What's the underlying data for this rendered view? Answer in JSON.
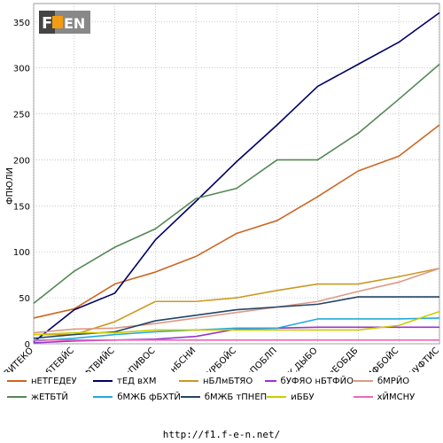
{
  "chart_data": {
    "type": "line",
    "title": "",
    "xlabel": "",
    "ylabel": "ФПЮЛИ",
    "ylim": [
      0,
      370
    ],
    "yticks": [
      0,
      50,
      100,
      150,
      200,
      250,
      300,
      350
    ],
    "grid": true,
    "legend_position": "bottom",
    "categories": [
      "вВИТЕКО",
      "уБ'РИФУЛБ бТЕВЙС",
      "бЧУФТВИЙС",
      "еНЙМИС-тПИВОС",
      "нБСНИ",
      "йУРБОЙС",
      "нПОБЛП",
      "бЪЕТВБК.ДЫБО",
      "лЕОБДБ",
      "лЙЛГОЛПЛВТИФБОЙС",
      "бЧУФТИС"
    ],
    "series": [
      {
        "name": "нЕТГЕДЕУ",
        "color": "#cc6622",
        "values": [
          28,
          38,
          65,
          78,
          95,
          120,
          134,
          160,
          188,
          204,
          238
        ]
      },
      {
        "name": "тЕД вХМ",
        "color": "#000066",
        "values": [
          2,
          37,
          55,
          113,
          155,
          198,
          238,
          280,
          304,
          328,
          360
        ]
      },
      {
        "name": "нБЛмБТЯО",
        "color": "#cc9922",
        "values": [
          10,
          10,
          24,
          46,
          46,
          50,
          58,
          65,
          65,
          73,
          82
        ]
      },
      {
        "name": "бУФЯО нБТФЙО",
        "color": "#9933cc",
        "values": [
          1,
          3,
          4,
          5,
          8,
          16,
          17,
          18,
          18,
          18,
          18
        ]
      },
      {
        "name": "бМРЙО",
        "color": "#dd9988",
        "values": [
          12,
          16,
          17,
          22,
          28,
          34,
          40,
          46,
          57,
          67,
          82
        ]
      },
      {
        "name": "жЕТБТЙ",
        "color": "#558855",
        "values": [
          44,
          79,
          105,
          125,
          158,
          169,
          200,
          200,
          229,
          266,
          304
        ]
      },
      {
        "name": "бМЖБ фБХТЙ",
        "color": "#22aadd",
        "values": [
          3,
          6,
          10,
          13,
          15,
          17,
          17,
          27,
          27,
          27,
          28
        ]
      },
      {
        "name": "бМЖБ тПНЕП",
        "color": "#224466",
        "values": [
          6,
          10,
          13,
          25,
          31,
          37,
          40,
          43,
          51,
          51,
          51
        ]
      },
      {
        "name": "иББУ",
        "color": "#cccc00",
        "values": [
          10,
          12,
          12,
          15,
          15,
          15,
          15,
          15,
          15,
          20,
          35
        ]
      },
      {
        "name": "хЙМСНУ",
        "color": "#ee66bb",
        "values": [
          4,
          4,
          4,
          4,
          4,
          4,
          4,
          4,
          4,
          4,
          4
        ]
      }
    ]
  },
  "logo_text": "F1-EN",
  "footer_url": "http://f1.f-e-n.net/"
}
